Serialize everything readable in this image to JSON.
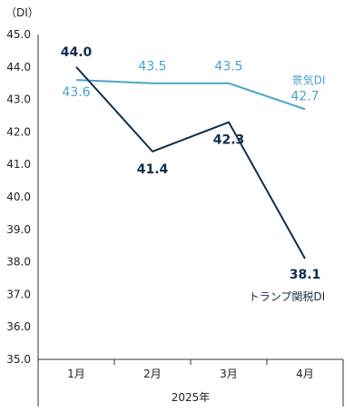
{
  "chart_data": {
    "type": "line",
    "unit_label": "（DI）",
    "categories": [
      "1月",
      "2月",
      "3月",
      "4月"
    ],
    "x_group_label": "2025年",
    "ylim": [
      35.0,
      45.0
    ],
    "ytick_step": 1.0,
    "yticks": [
      "35.0",
      "36.0",
      "37.0",
      "38.0",
      "39.0",
      "40.0",
      "41.0",
      "42.0",
      "43.0",
      "44.0",
      "45.0"
    ],
    "grid": false,
    "series": [
      {
        "name": "景気DI",
        "color": "#4aa3cc",
        "values": [
          43.6,
          43.5,
          43.5,
          42.7
        ],
        "labels": [
          "43.6",
          "43.5",
          "43.5",
          "42.7"
        ]
      },
      {
        "name": "トランプ関税DI",
        "color": "#0f2d4d",
        "values": [
          44.0,
          41.4,
          42.3,
          38.1
        ],
        "labels": [
          "44.0",
          "41.4",
          "42.3",
          "38.1"
        ]
      }
    ]
  }
}
